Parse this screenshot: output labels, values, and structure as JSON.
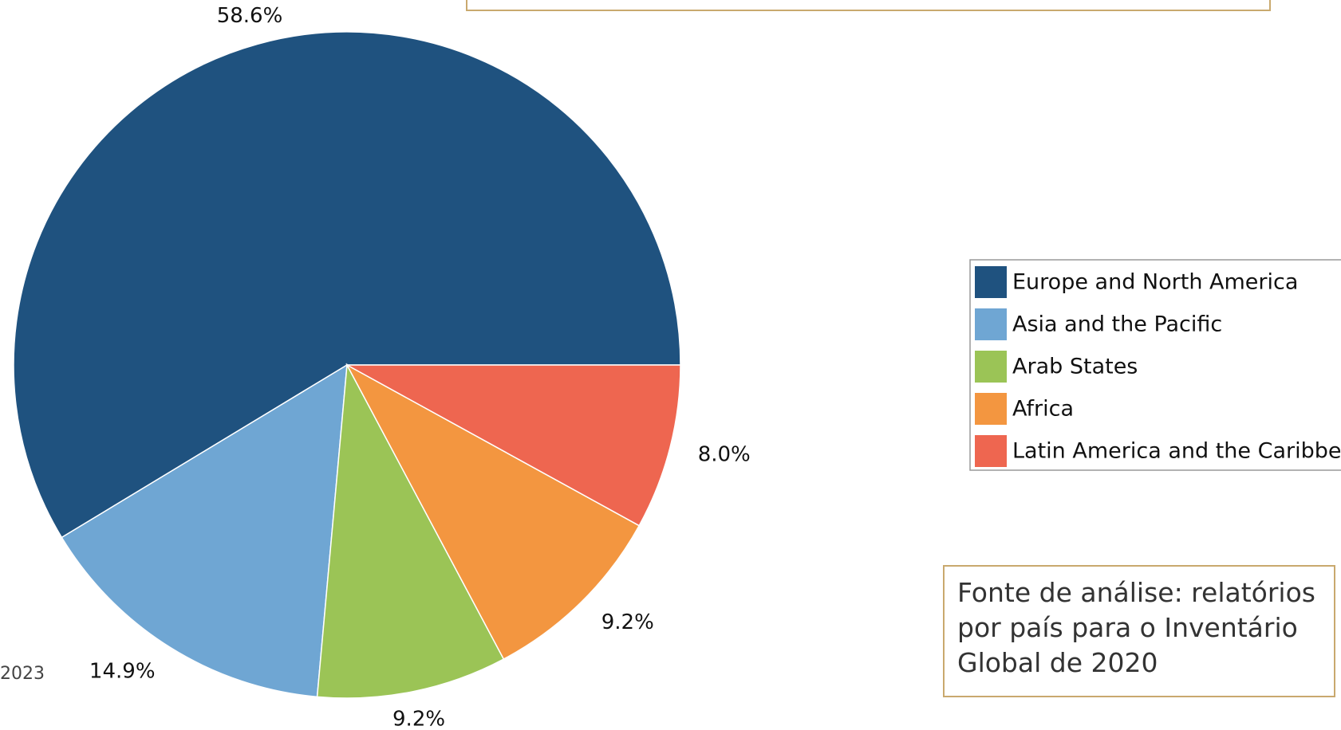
{
  "chart_data": {
    "type": "pie",
    "categories": [
      "Europe and North America",
      "Asia and the Pacific",
      "Arab States",
      "Africa",
      "Latin America and the Caribbean"
    ],
    "values": [
      58.6,
      14.9,
      9.2,
      9.2,
      8.0
    ],
    "value_labels": [
      "58.6%",
      "14.9%",
      "9.2%",
      "9.2%",
      "8.0%"
    ],
    "colors": [
      "#1f527f",
      "#6fa6d3",
      "#9bc456",
      "#f39640",
      "#ee6650"
    ],
    "legend": "right",
    "annotations": [
      "2023"
    ],
    "source_note": "Fonte de análise: relatórios por país para o Inventário Global de 2020"
  }
}
